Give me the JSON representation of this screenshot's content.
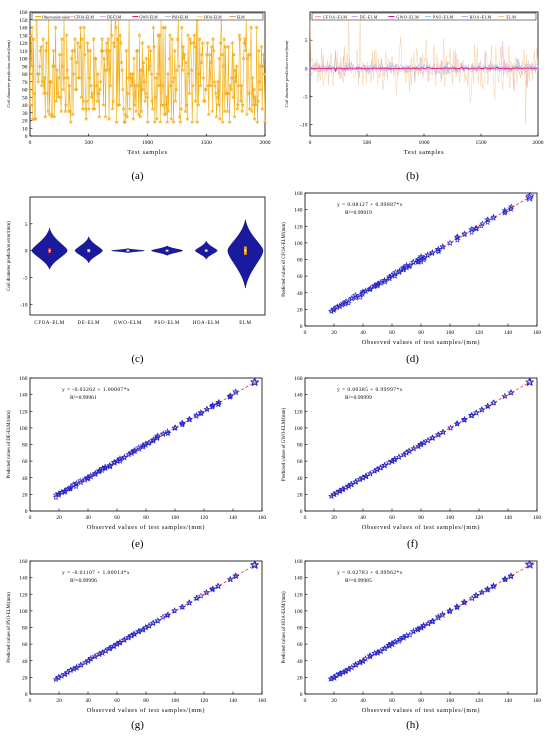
{
  "chart_data": [
    {
      "id": "a",
      "type": "line",
      "caption": "(a)",
      "ylabel": "Coil diameter prediction value/(mm)",
      "xlabel": "Test samples",
      "xlim": [
        0,
        2000
      ],
      "ylim": [
        0,
        160
      ],
      "xticks": [
        0,
        500,
        1000,
        1500,
        2000
      ],
      "yticks": [
        0,
        10,
        20,
        30,
        40,
        50,
        60,
        70,
        80,
        90,
        100,
        110,
        120,
        130,
        140,
        150,
        160
      ],
      "legend": [
        "Observation value",
        "CFOA-ELM",
        "DE-ELM",
        "GWO-ELM",
        "PSO-ELM",
        "HOA-ELM",
        "ELM"
      ],
      "legend_position": "top",
      "series_colors": [
        "#f2a900",
        "#f5b7b1",
        "#d2b4de",
        "#e91e63",
        "#b0c4de",
        "#ffcc80",
        "#d4a373"
      ],
      "value_levels": [
        18,
        22,
        25,
        28,
        32,
        35,
        40,
        45,
        50,
        55,
        60,
        65,
        70,
        75,
        80,
        85,
        90,
        95,
        100,
        105,
        110,
        115,
        120,
        125,
        130,
        140,
        155
      ],
      "n_samples": 2000
    },
    {
      "id": "b",
      "type": "line",
      "caption": "(b)",
      "ylabel": "Coil diameter prediction error/(mm)",
      "xlabel": "Test samples",
      "xlim": [
        0,
        2000
      ],
      "ylim": [
        -12,
        10
      ],
      "xticks": [
        0,
        500,
        1000,
        1500,
        2000
      ],
      "yticks": [
        -10,
        -5,
        0,
        5
      ],
      "legend": [
        "CFOA-ELM",
        "DE-ELM",
        "GWO-ELM",
        "PSO-ELM",
        "HOA-ELM",
        "ELM"
      ],
      "legend_position": "top",
      "series": [
        {
          "name": "ELM",
          "color": "#f2c48d",
          "amplitude": 4.2
        },
        {
          "name": "CFOA-ELM",
          "color": "#f5a3a3",
          "amplitude": 1.4
        },
        {
          "name": "DE-ELM",
          "color": "#c9a7e0",
          "amplitude": 1.0
        },
        {
          "name": "HOA-ELM",
          "color": "#9bb7e0",
          "amplitude": 0.8
        },
        {
          "name": "PSO-ELM",
          "color": "#8fd0e0",
          "amplitude": 0.4
        },
        {
          "name": "GWO-ELM",
          "color": "#e0118a",
          "amplitude": 0.15
        }
      ]
    },
    {
      "id": "c",
      "type": "violin",
      "caption": "(c)",
      "ylabel": "Coil diameter prediction error/(mm)",
      "ylim": [
        -12,
        10
      ],
      "yticks": [
        -10,
        -5,
        0,
        5
      ],
      "categories": [
        "CFOA-ELM",
        "DE-ELM",
        "GWO-ELM",
        "PSO-ELM",
        "HOA-ELM",
        "ELM"
      ],
      "violins": [
        {
          "min": -3.5,
          "max": 4.2,
          "halfwidth": 0.45,
          "median": 0
        },
        {
          "min": -2.3,
          "max": 2.6,
          "halfwidth": 0.35,
          "median": 0
        },
        {
          "min": -0.4,
          "max": 0.4,
          "halfwidth": 0.42,
          "median": 0
        },
        {
          "min": -0.9,
          "max": 0.9,
          "halfwidth": 0.4,
          "median": 0
        },
        {
          "min": -1.6,
          "max": 1.8,
          "halfwidth": 0.28,
          "median": 0
        },
        {
          "min": -7.0,
          "max": 5.8,
          "halfwidth": 0.45,
          "median": 0
        }
      ],
      "fill_color": "#1a1a9e"
    },
    {
      "id": "d",
      "type": "scatter",
      "caption": "(d)",
      "xlabel": "Observed values of test samples/(mm)",
      "ylabel": "Predicted values of CFOA-ELM/(mm)",
      "xlim": [
        0,
        160
      ],
      "ylim": [
        0,
        160
      ],
      "xticks": [
        0,
        20,
        40,
        60,
        80,
        100,
        120,
        140,
        160
      ],
      "yticks": [
        0,
        20,
        40,
        60,
        80,
        100,
        120,
        140,
        160
      ],
      "equation": "y = 0.08127 + 0.99887*x",
      "r2": "R²=0.99919",
      "intercept": 0.08127,
      "slope": 0.99887,
      "spread": 2.2
    },
    {
      "id": "e",
      "type": "scatter",
      "caption": "(e)",
      "xlabel": "Observed values of test samples/(mm)",
      "ylabel": "Predicted values of DE-ELM/(mm)",
      "xlim": [
        0,
        160
      ],
      "ylim": [
        0,
        160
      ],
      "xticks": [
        0,
        20,
        40,
        60,
        80,
        100,
        120,
        140,
        160
      ],
      "yticks": [
        0,
        20,
        40,
        60,
        80,
        100,
        120,
        140,
        160
      ],
      "equation": "y = -0.03262 + 1.00007*x",
      "r2": "R²=0.99961",
      "intercept": -0.03262,
      "slope": 1.00007,
      "spread": 1.6
    },
    {
      "id": "f",
      "type": "scatter",
      "caption": "(f)",
      "xlabel": "Observed values of test samples/(mm)",
      "ylabel": "Predicted values of GWO-ELM/(mm)",
      "xlim": [
        0,
        160
      ],
      "ylim": [
        0,
        160
      ],
      "xticks": [
        0,
        20,
        40,
        60,
        80,
        100,
        120,
        140,
        160
      ],
      "yticks": [
        0,
        20,
        40,
        60,
        80,
        100,
        120,
        140,
        160
      ],
      "equation": "y = 0.00385 + 0.99997*x",
      "r2": "R²=0.99999",
      "intercept": 0.00385,
      "slope": 0.99997,
      "spread": 0.4
    },
    {
      "id": "g",
      "type": "scatter",
      "caption": "(g)",
      "xlabel": "Observed values of test samples/(mm)",
      "ylabel": "Predicted values of PSO-ELM/(mm)",
      "xlim": [
        0,
        160
      ],
      "ylim": [
        0,
        160
      ],
      "xticks": [
        0,
        20,
        40,
        60,
        80,
        100,
        120,
        140,
        160
      ],
      "yticks": [
        0,
        20,
        40,
        60,
        80,
        100,
        120,
        140,
        160
      ],
      "equation": "y = -0.01107 + 1.00014*x",
      "r2": "R²=0.99996",
      "intercept": -0.01107,
      "slope": 1.00014,
      "spread": 0.7
    },
    {
      "id": "h",
      "type": "scatter",
      "caption": "(h)",
      "xlabel": "Observed values of test samples/(mm)",
      "ylabel": "Predicted values of HOA-ELM/(mm)",
      "xlim": [
        0,
        160
      ],
      "ylim": [
        0,
        160
      ],
      "xticks": [
        0,
        20,
        40,
        60,
        80,
        100,
        120,
        140,
        160
      ],
      "yticks": [
        0,
        20,
        40,
        60,
        80,
        100,
        120,
        140,
        160
      ],
      "equation": "y = 0.02783 + 0.99962*x",
      "r2": "R²=0.99985",
      "intercept": 0.02783,
      "slope": 0.99962,
      "spread": 1.0
    }
  ]
}
